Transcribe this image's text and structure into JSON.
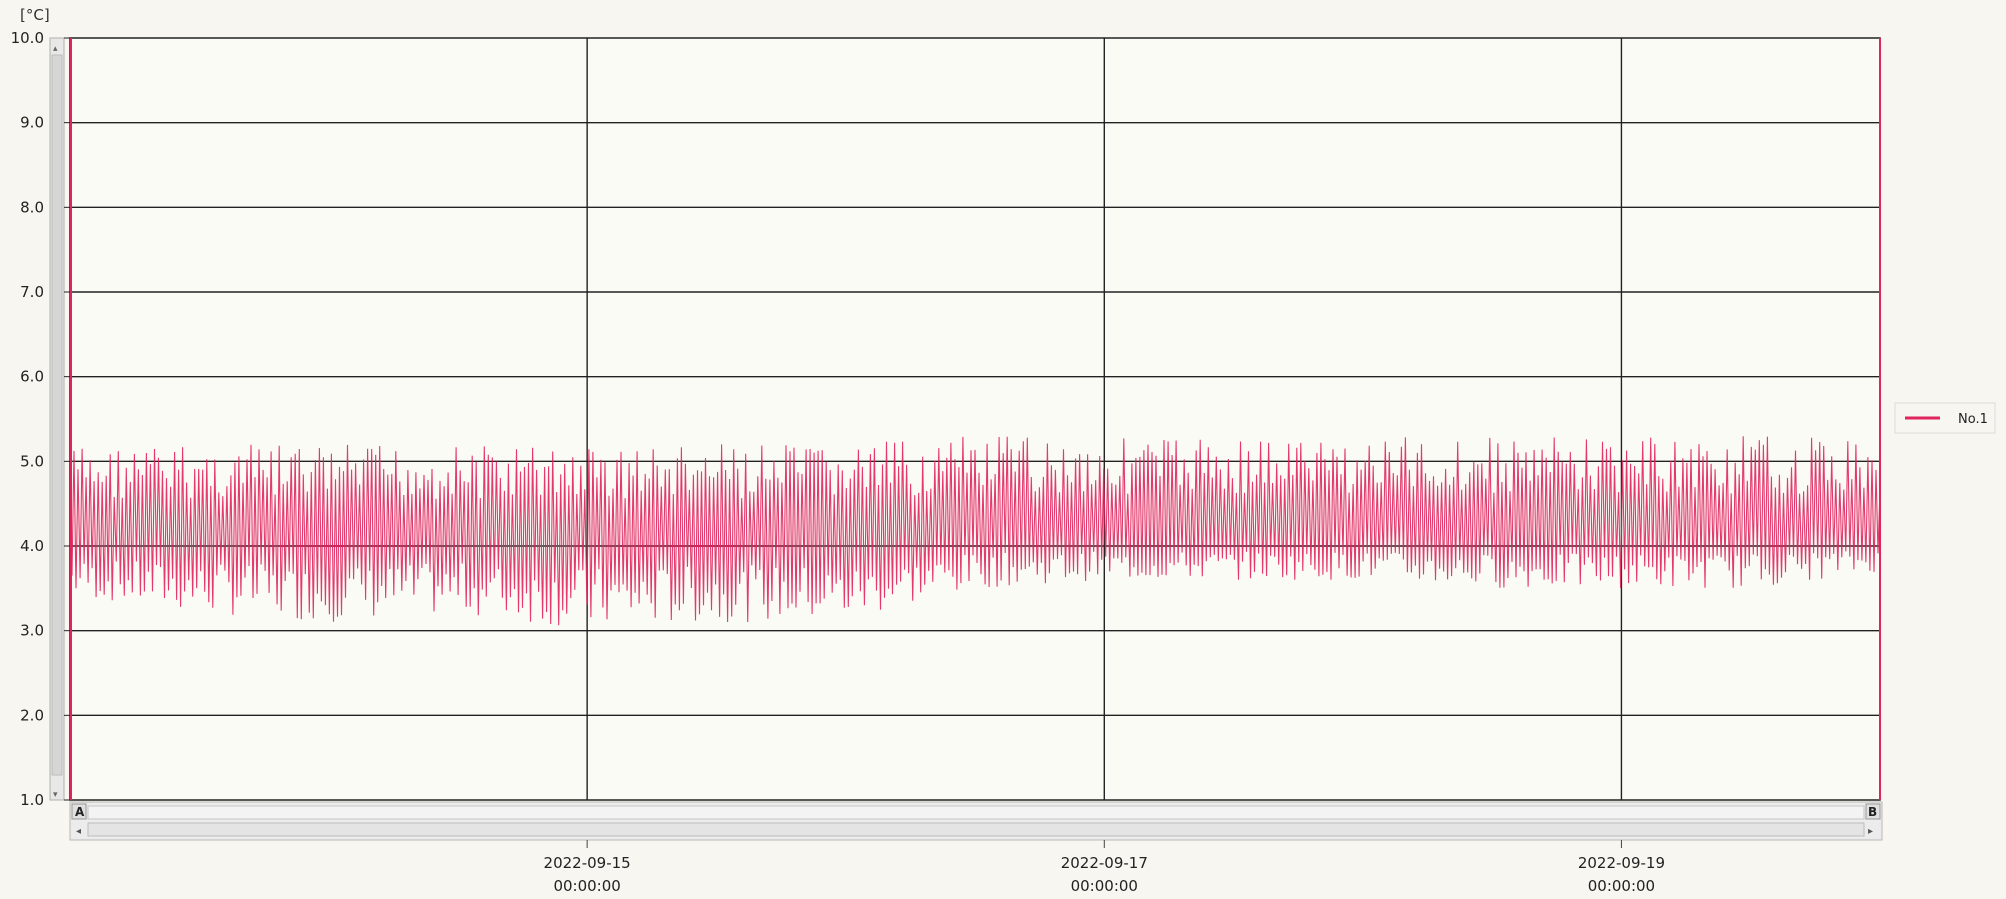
{
  "chart_data": {
    "type": "line",
    "unit_label": "[°C]",
    "ylim": [
      1.0,
      10.0
    ],
    "y_ticks": [
      "1.0",
      "2.0",
      "3.0",
      "4.0",
      "5.0",
      "6.0",
      "7.0",
      "8.0",
      "9.0",
      "10.0"
    ],
    "xlim": [
      "2022-09-13 00:00:00",
      "2022-09-20 00:00:00"
    ],
    "x_ticks": [
      {
        "date": "2022-09-15",
        "time": "00:00:00"
      },
      {
        "date": "2022-09-17",
        "time": "00:00:00"
      },
      {
        "date": "2022-09-19",
        "time": "00:00:00"
      }
    ],
    "grid": true,
    "legend_position": "right",
    "series": [
      {
        "name": "No.1",
        "color": "#e0245e",
        "x_start": "2022-09-13 00:00:00",
        "x_end": "2022-09-20 00:00:00",
        "envelope_times": [
          "2022-09-13",
          "2022-09-13 12:00",
          "2022-09-14",
          "2022-09-14 12:00",
          "2022-09-15",
          "2022-09-15 12:00",
          "2022-09-16",
          "2022-09-16 12:00",
          "2022-09-17",
          "2022-09-17 12:00",
          "2022-09-18",
          "2022-09-18 12:00",
          "2022-09-19",
          "2022-09-19 12:00",
          "2022-09-20"
        ],
        "envelope_max": [
          5.2,
          5.2,
          5.2,
          5.2,
          5.2,
          5.2,
          5.2,
          5.3,
          5.3,
          5.3,
          5.3,
          5.3,
          5.3,
          5.3,
          5.3
        ],
        "envelope_min": [
          3.4,
          3.2,
          3.1,
          3.2,
          3.0,
          3.1,
          3.1,
          3.5,
          3.6,
          3.6,
          3.6,
          3.5,
          3.5,
          3.5,
          3.7
        ]
      }
    ]
  },
  "scrollbar": {
    "left_label": "A",
    "right_label": "B",
    "left_arrow": "◂",
    "right_arrow": "▸"
  }
}
